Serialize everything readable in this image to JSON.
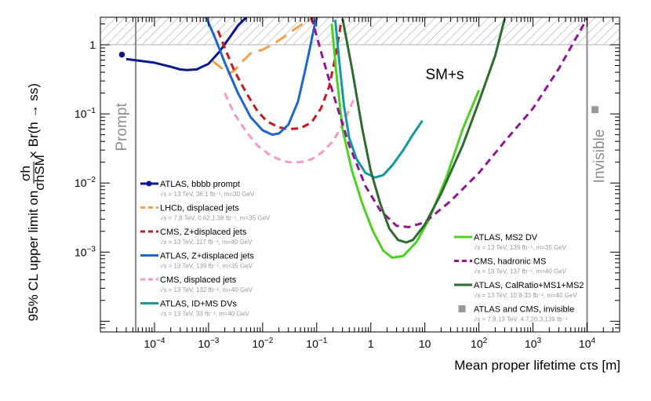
{
  "chart_data": {
    "type": "line",
    "xscale": "log",
    "yscale": "log",
    "xlim": [
      1e-05,
      40000
    ],
    "ylim": [
      7e-05,
      2.5
    ],
    "xlabel": "Mean proper lifetime cτs [m]",
    "ylabel_parts": {
      "lead": "95% CL upper limit on",
      "num": "σh",
      "den": "σhSM",
      "tail": "× Br(h → ss)"
    },
    "x_ticks": [
      {
        "value": 0.0001,
        "base": "10",
        "exp": "−4"
      },
      {
        "value": 0.001,
        "base": "10",
        "exp": "−3"
      },
      {
        "value": 0.01,
        "base": "10",
        "exp": "−2"
      },
      {
        "value": 0.1,
        "base": "10",
        "exp": "−1"
      },
      {
        "value": 1,
        "base": "1",
        "exp": ""
      },
      {
        "value": 10,
        "base": "10",
        "exp": ""
      },
      {
        "value": 100,
        "base": "10",
        "exp": "2"
      },
      {
        "value": 1000,
        "base": "10",
        "exp": "3"
      },
      {
        "value": 10000,
        "base": "10",
        "exp": "4"
      }
    ],
    "y_ticks": [
      {
        "value": 0.001,
        "base": "10",
        "exp": "−3"
      },
      {
        "value": 0.01,
        "base": "10",
        "exp": "−2"
      },
      {
        "value": 0.1,
        "base": "10",
        "exp": "−1"
      },
      {
        "value": 1,
        "base": "1",
        "exp": ""
      }
    ],
    "region_labels": {
      "prompt": "Prompt",
      "invisible": "Invisible",
      "sm": "SM+s"
    },
    "boundaries": {
      "prompt_x": 4.5e-05,
      "invisible_x": 10000,
      "excluded_above_y": 1
    },
    "series": [
      {
        "name": "ATLAS, bbbb prompt",
        "detail": "√s = 13 TeV, 36.1 fb⁻¹, m=30 GeV",
        "color": "#0a1a8c",
        "style": "dot-line",
        "point": [
          2.5e-05,
          0.72
        ],
        "x": [
          3e-05,
          0.0001,
          0.0002,
          0.0003,
          0.0004,
          0.0006,
          0.001,
          0.0016,
          0.0025,
          0.0035,
          0.005
        ],
        "y": [
          0.62,
          0.55,
          0.48,
          0.44,
          0.43,
          0.44,
          0.53,
          0.8,
          1.3,
          1.9,
          2.5
        ]
      },
      {
        "name": "LHCb, displaced jets",
        "detail": "√s = 7,8 TeV, 0.62,1.38 fb⁻¹, m=35 GeV",
        "color": "#f5a04a",
        "style": "long-dash",
        "x": [
          0.0012,
          0.0018,
          0.0023,
          0.003,
          0.004,
          0.006,
          0.01,
          0.015,
          0.025,
          0.04,
          0.06,
          0.09
        ],
        "y": [
          0.58,
          0.45,
          0.38,
          0.42,
          0.55,
          0.75,
          0.85,
          1.0,
          1.3,
          1.7,
          2.1,
          2.5
        ]
      },
      {
        "name": "CMS, Z+displaced jets",
        "detail": "√s = 13 TeV, 117 fb⁻¹, m=40 GeV",
        "color": "#c41a1a",
        "style": "dash",
        "x": [
          0.0015,
          0.002,
          0.003,
          0.005,
          0.008,
          0.012,
          0.02,
          0.03,
          0.05,
          0.08,
          0.12,
          0.17,
          0.22,
          0.28
        ],
        "y": [
          1.6,
          0.9,
          0.42,
          0.2,
          0.11,
          0.078,
          0.064,
          0.06,
          0.062,
          0.075,
          0.12,
          0.25,
          0.65,
          2.0
        ]
      },
      {
        "name": "ATLAS, Z+displaced jets",
        "detail": "√s = 13 TeV, 139 fb⁻¹, m=35 GeV",
        "color": "#1e66cc",
        "style": "solid",
        "x": [
          0.0009,
          0.0013,
          0.002,
          0.0035,
          0.006,
          0.01,
          0.015,
          0.02,
          0.03,
          0.045,
          0.06,
          0.075,
          0.09,
          0.1
        ],
        "y": [
          2.5,
          1.3,
          0.55,
          0.2,
          0.09,
          0.058,
          0.05,
          0.052,
          0.07,
          0.15,
          0.4,
          0.9,
          1.8,
          2.5
        ]
      },
      {
        "name": "CMS, displaced jets",
        "detail": "√s = 13 TeV, 132 fb⁻¹, m=40 GeV",
        "color": "#f49ac8",
        "style": "dash",
        "x": [
          0.002,
          0.003,
          0.005,
          0.008,
          0.013,
          0.02,
          0.03,
          0.05,
          0.08,
          0.12,
          0.2,
          0.3,
          0.5
        ],
        "y": [
          0.2,
          0.1,
          0.055,
          0.035,
          0.026,
          0.022,
          0.02,
          0.02,
          0.022,
          0.027,
          0.04,
          0.07,
          0.17
        ]
      },
      {
        "name": "ATLAS, ID+MS DVs",
        "detail": "√s = 13 TeV, 33 fb⁻¹, m=40 GeV",
        "color": "#13999c",
        "style": "solid",
        "x": [
          0.22,
          0.26,
          0.32,
          0.4,
          0.55,
          0.8,
          1.2,
          1.7,
          2.5,
          4,
          6,
          9
        ],
        "y": [
          2.3,
          0.6,
          0.13,
          0.045,
          0.022,
          0.014,
          0.012,
          0.013,
          0.018,
          0.03,
          0.05,
          0.08
        ]
      },
      {
        "name": "ATLAS, MS2 DV",
        "detail": "√s = 13 TeV, 139 fb⁻¹, m=35 GeV",
        "color": "#4cd021",
        "style": "solid",
        "x": [
          0.19,
          0.23,
          0.3,
          0.45,
          0.7,
          1.1,
          1.7,
          2.5,
          4,
          7,
          12,
          25,
          50,
          100
        ],
        "y": [
          2.0,
          0.4,
          0.06,
          0.015,
          0.005,
          0.002,
          0.00105,
          0.00083,
          0.00088,
          0.0014,
          0.003,
          0.012,
          0.06,
          0.22
        ]
      },
      {
        "name": "CMS, hadronic MS",
        "detail": "√s = 13 TeV, 137 fb⁻¹, m=40 GeV",
        "color": "#8f1593",
        "style": "dash",
        "x": [
          0.08,
          0.12,
          0.2,
          0.4,
          0.8,
          1.5,
          3,
          5,
          10,
          30,
          100,
          300,
          1000,
          3000,
          10000
        ],
        "y": [
          2.5,
          0.8,
          0.2,
          0.035,
          0.009,
          0.004,
          0.0024,
          0.0023,
          0.0027,
          0.0055,
          0.014,
          0.04,
          0.12,
          0.45,
          2.4
        ]
      },
      {
        "name": "ATLAS, CalRatio+MS1+MS2",
        "detail": "√s = 13 TeV, 10.8-33 fb⁻¹, m=40 GeV",
        "color": "#2e6b2e",
        "style": "solid",
        "x": [
          0.3,
          0.45,
          0.7,
          1,
          1.5,
          2.2,
          3.2,
          4.5,
          6,
          10,
          20,
          50,
          100,
          200,
          300
        ],
        "y": [
          2.4,
          0.45,
          0.06,
          0.015,
          0.005,
          0.0022,
          0.0015,
          0.00138,
          0.0015,
          0.0025,
          0.007,
          0.035,
          0.15,
          0.7,
          2.4
        ]
      },
      {
        "name": "ATLAS and CMS, invisible",
        "detail": "√s = 7,8,13 TeV, 4.7,20.3,139 fb⁻¹",
        "color": "#999999",
        "style": "square",
        "point": [
          14000,
          0.115
        ]
      }
    ]
  }
}
